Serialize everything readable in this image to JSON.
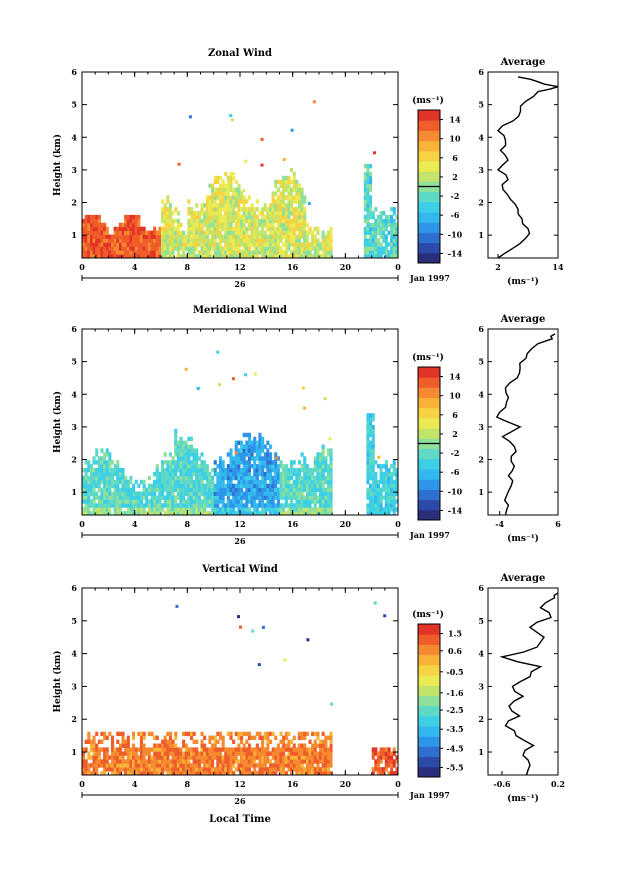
{
  "figure": {
    "x_axis_label": "Local Time",
    "date_label": "Jan 1997",
    "day_label": "26",
    "palette": [
      "#2b2e7a",
      "#2c4aa8",
      "#2f6fd0",
      "#2f95e8",
      "#33b8ee",
      "#3ccfe6",
      "#5ed9c6",
      "#8ee09a",
      "#c3e46a",
      "#ecea52",
      "#f6d342",
      "#f7b238",
      "#f58a30",
      "#ef5d2b",
      "#e3342a"
    ]
  },
  "chart_data": [
    {
      "type": "heatmap",
      "title": "Zonal Wind",
      "ylabel": "Height (km)",
      "unit": "(ms⁻¹)",
      "x_ticks": [
        "0",
        "4",
        "8",
        "12",
        "16",
        "20",
        "0"
      ],
      "x_range_hours": [
        0,
        24
      ],
      "y_ticks": [
        "1",
        "2",
        "3",
        "4",
        "5",
        "6"
      ],
      "ylim": [
        0.3,
        6.0
      ],
      "colorbar_ticks": [
        "14",
        "10",
        "6",
        "2",
        "-2",
        "-6",
        "-10",
        "-14"
      ],
      "colorbar_range": [
        -16,
        16
      ],
      "colorbar_line": 0,
      "average_profile": {
        "title": "Average",
        "unit": "(ms⁻¹)",
        "x_ticks": [
          "2",
          "14"
        ],
        "xlim": [
          0,
          14
        ],
        "height_km": [
          0.3,
          0.6,
          0.9,
          1.2,
          1.5,
          1.8,
          2.1,
          2.4,
          2.7,
          3.0,
          3.3,
          3.6,
          3.9,
          4.2,
          4.5,
          4.8,
          5.1,
          5.4,
          5.55,
          5.7,
          5.85
        ],
        "speed_ms": [
          2.0,
          5.0,
          7.5,
          8.0,
          6.8,
          6.0,
          4.5,
          3.0,
          4.0,
          2.0,
          4.0,
          2.5,
          3.5,
          2.0,
          5.0,
          6.5,
          7.5,
          10.0,
          14.0,
          10.0,
          6.0
        ]
      }
    },
    {
      "type": "heatmap",
      "title": "Meridional Wind",
      "ylabel": "Height (km)",
      "unit": "(ms⁻¹)",
      "x_ticks": [
        "0",
        "4",
        "8",
        "12",
        "16",
        "20",
        "0"
      ],
      "x_range_hours": [
        0,
        24
      ],
      "y_ticks": [
        "1",
        "2",
        "3",
        "4",
        "5",
        "6"
      ],
      "ylim": [
        0.3,
        6.0
      ],
      "colorbar_ticks": [
        "14",
        "10",
        "6",
        "2",
        "-2",
        "-6",
        "-10",
        "-14"
      ],
      "colorbar_range": [
        -16,
        16
      ],
      "colorbar_line": 0,
      "average_profile": {
        "title": "Average",
        "unit": "(ms⁻¹)",
        "x_ticks": [
          "-4",
          "6"
        ],
        "xlim": [
          -6,
          6
        ],
        "height_km": [
          0.3,
          0.6,
          0.9,
          1.2,
          1.5,
          1.8,
          2.1,
          2.4,
          2.7,
          3.0,
          3.3,
          3.6,
          3.9,
          4.2,
          4.5,
          4.8,
          5.1,
          5.4,
          5.7,
          5.85
        ],
        "speed_ms": [
          -3.0,
          -2.5,
          -2.8,
          -2.0,
          -2.5,
          -1.5,
          -2.0,
          -1.5,
          -3.5,
          -0.5,
          -4.5,
          -3.0,
          -2.5,
          -3.0,
          -1.0,
          -0.5,
          0.5,
          1.5,
          5.0,
          5.5
        ]
      }
    },
    {
      "type": "heatmap",
      "title": "Vertical Wind",
      "ylabel": "Height (km)",
      "unit": "(ms⁻¹)",
      "x_ticks": [
        "0",
        "4",
        "8",
        "12",
        "16",
        "20",
        "0"
      ],
      "x_range_hours": [
        0,
        24
      ],
      "y_ticks": [
        "1",
        "2",
        "3",
        "4",
        "5",
        "6"
      ],
      "ylim": [
        0.3,
        6.0
      ],
      "colorbar_ticks": [
        "1.5",
        "0.6",
        "-0.5",
        "-1.6",
        "-2.5",
        "-3.5",
        "-4.5",
        "-5.5"
      ],
      "colorbar_range": [
        -6.0,
        2.0
      ],
      "average_profile": {
        "title": "Average",
        "unit": "(ms⁻¹)",
        "x_ticks": [
          "-0.6",
          "0.2"
        ],
        "xlim": [
          -0.8,
          0.2
        ],
        "height_km": [
          0.3,
          0.6,
          0.9,
          1.2,
          1.5,
          1.8,
          2.1,
          2.4,
          2.7,
          3.0,
          3.3,
          3.6,
          3.9,
          4.2,
          4.5,
          4.8,
          5.1,
          5.4,
          5.7,
          5.85
        ],
        "speed_ms": [
          -0.25,
          -0.2,
          -0.3,
          -0.15,
          -0.4,
          -0.55,
          -0.35,
          -0.5,
          -0.3,
          -0.45,
          -0.2,
          -0.05,
          -0.6,
          -0.1,
          0.0,
          -0.2,
          0.1,
          -0.05,
          0.15,
          0.2
        ]
      }
    }
  ]
}
